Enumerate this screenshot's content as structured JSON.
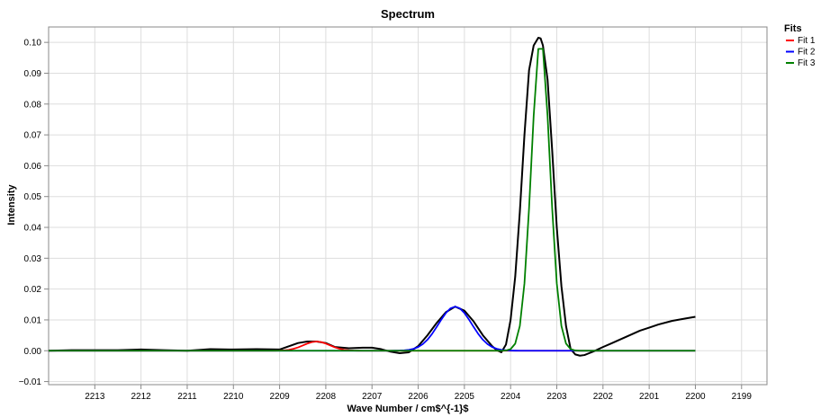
{
  "chart_data": {
    "type": "line",
    "title": "Spectrum",
    "xlabel": "Wave Number / cm$^{-1}$",
    "ylabel": "Intensity",
    "xlim": [
      2214.0,
      2198.45
    ],
    "ylim": [
      -0.011,
      0.105
    ],
    "x_reversed": true,
    "grid": true,
    "x_ticks": [
      "2213",
      "2212",
      "2211",
      "2210",
      "2209",
      "2208",
      "2207",
      "2206",
      "2205",
      "2204",
      "2203",
      "2202",
      "2201",
      "2200",
      "2199"
    ],
    "y_ticks": [
      "−0.01",
      "0.00",
      "0.01",
      "0.02",
      "0.03",
      "0.04",
      "0.05",
      "0.06",
      "0.07",
      "0.08",
      "0.09",
      "0.10"
    ],
    "legend": {
      "title": "Fits",
      "placement": "top-right"
    },
    "series": [
      {
        "name": "Fit 1",
        "color": "#ff0000",
        "kind": "gauss",
        "amp": 0.003,
        "mu": 2208.2,
        "sigma": 0.28
      },
      {
        "name": "Fit 2",
        "color": "#0000ff",
        "kind": "gauss",
        "amp": 0.0143,
        "mu": 2205.2,
        "sigma": 0.36
      },
      {
        "name": "Fit 3",
        "color": "#008000",
        "kind": "gauss",
        "amp": 0.101,
        "mu": 2203.35,
        "sigma": 0.2
      }
    ],
    "data": {
      "color": "#000000",
      "x": [
        2214.0,
        2213.5,
        2213.0,
        2212.5,
        2212.0,
        2211.5,
        2211.0,
        2210.5,
        2210.0,
        2209.5,
        2209.0,
        2208.6,
        2208.4,
        2208.2,
        2208.0,
        2207.8,
        2207.5,
        2207.2,
        2207.0,
        2206.8,
        2206.6,
        2206.4,
        2206.2,
        2206.0,
        2205.8,
        2205.6,
        2205.4,
        2205.2,
        2205.0,
        2204.8,
        2204.6,
        2204.4,
        2204.3,
        2204.2,
        2204.1,
        2204.0,
        2203.9,
        2203.8,
        2203.7,
        2203.6,
        2203.5,
        2203.4,
        2203.35,
        2203.3,
        2203.2,
        2203.1,
        2203.0,
        2202.9,
        2202.8,
        2202.7,
        2202.6,
        2202.5,
        2202.4,
        2202.3,
        2202.2,
        2202.0,
        2201.8,
        2201.5,
        2201.2,
        2201.0,
        2200.8,
        2200.5,
        2200.2,
        2200.0
      ],
      "y": [
        0.0,
        0.0002,
        0.0002,
        0.0002,
        0.0004,
        0.0002,
        0.0,
        0.0005,
        0.0004,
        0.0005,
        0.0004,
        0.0025,
        0.003,
        0.003,
        0.0025,
        0.0012,
        0.0008,
        0.001,
        0.001,
        0.0005,
        -0.0003,
        -0.0008,
        -0.0005,
        0.0015,
        0.005,
        0.009,
        0.0125,
        0.0143,
        0.013,
        0.0095,
        0.005,
        0.0015,
        0.0002,
        -0.0005,
        0.002,
        0.01,
        0.024,
        0.045,
        0.07,
        0.091,
        0.099,
        0.1015,
        0.1013,
        0.099,
        0.088,
        0.065,
        0.04,
        0.021,
        0.008,
        0.0005,
        -0.0012,
        -0.0016,
        -0.0014,
        -0.0008,
        -0.0002,
        0.0012,
        0.0025,
        0.0045,
        0.0065,
        0.0075,
        0.0085,
        0.0097,
        0.0105,
        0.011
      ]
    }
  }
}
